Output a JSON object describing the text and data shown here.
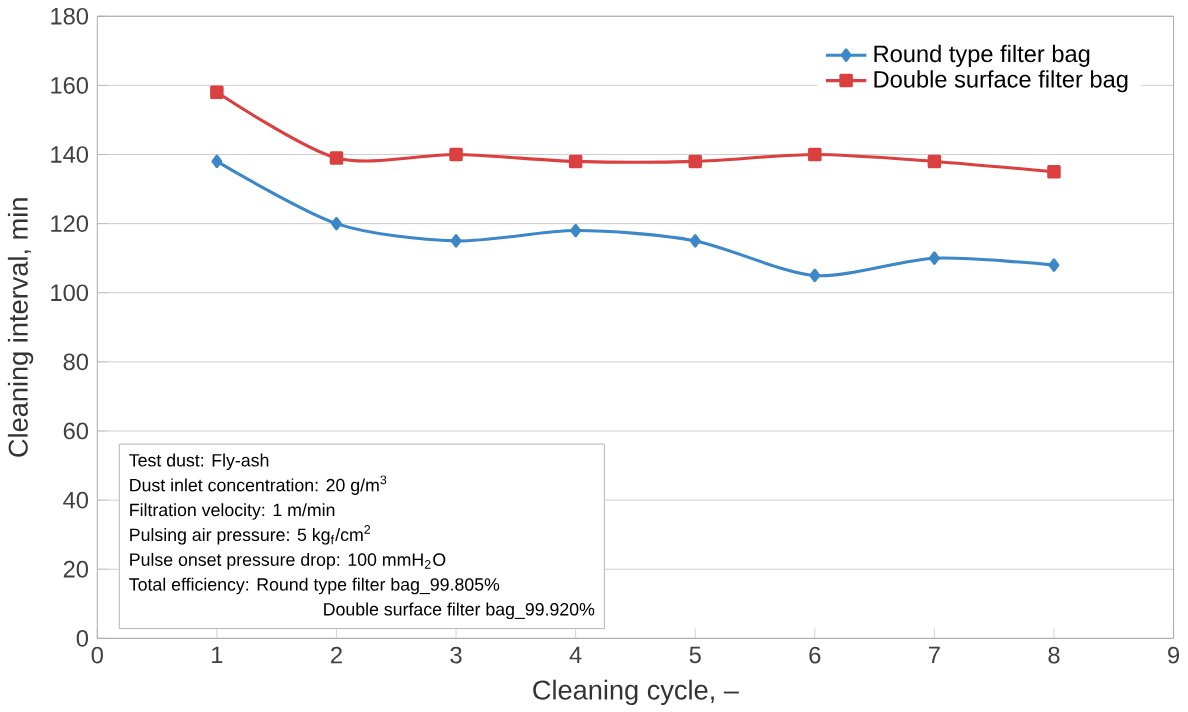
{
  "chart_data": {
    "type": "line",
    "xlabel": "Cleaning cycle, –",
    "ylabel": "Cleaning interval, min",
    "x": [
      1,
      2,
      3,
      4,
      5,
      6,
      7,
      8
    ],
    "series": [
      {
        "name": "Round type filter bag",
        "color": "#3b87c8",
        "marker": "diamond",
        "values": [
          138,
          120,
          115,
          118,
          115,
          105,
          110,
          108
        ]
      },
      {
        "name": "Double surface filter bag",
        "color": "#d9403f",
        "marker": "square",
        "values": [
          158,
          139,
          140,
          138,
          138,
          140,
          138,
          135
        ]
      }
    ],
    "xlim": [
      0,
      9
    ],
    "xticks": [
      0,
      1,
      2,
      3,
      4,
      5,
      6,
      7,
      8,
      9
    ],
    "ylim": [
      0,
      180
    ],
    "yticks": [
      0,
      20,
      40,
      60,
      80,
      100,
      120,
      140,
      160,
      180
    ],
    "grid": "y",
    "legend": "top right",
    "annotations": [
      "Test dust: Fly-ash",
      "Dust inlet concentration: 20 g/m$^{3}$",
      "Filtration velocity: 1 m/min",
      "Pulsing air pressure: 5 kg$_{f}$/cm$^{2}$",
      "Pulse onset pressure drop: 100 mmH$_{2}$O",
      "Total efficiency: Round type filter bag_99.805%",
      "Double surface filter bag_99.920%"
    ]
  }
}
